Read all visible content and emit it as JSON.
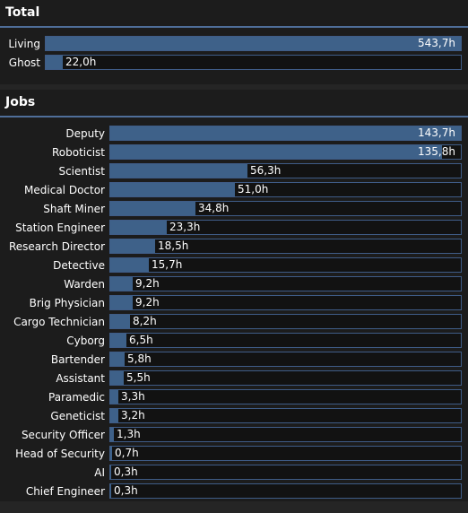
{
  "total": {
    "title": "Total",
    "max": 543.7,
    "items": [
      {
        "label": "Living",
        "value": 543.7,
        "text": "543,7h"
      },
      {
        "label": "Ghost",
        "value": 22.0,
        "text": "22,0h"
      }
    ]
  },
  "jobs": {
    "title": "Jobs",
    "max": 143.7,
    "items": [
      {
        "label": "Deputy",
        "value": 143.7,
        "text": "143,7h"
      },
      {
        "label": "Roboticist",
        "value": 135.8,
        "text": "135,8h"
      },
      {
        "label": "Scientist",
        "value": 56.3,
        "text": "56,3h"
      },
      {
        "label": "Medical Doctor",
        "value": 51.0,
        "text": "51,0h"
      },
      {
        "label": "Shaft Miner",
        "value": 34.8,
        "text": "34,8h"
      },
      {
        "label": "Station Engineer",
        "value": 23.3,
        "text": "23,3h"
      },
      {
        "label": "Research Director",
        "value": 18.5,
        "text": "18,5h"
      },
      {
        "label": "Detective",
        "value": 15.7,
        "text": "15,7h"
      },
      {
        "label": "Warden",
        "value": 9.2,
        "text": "9,2h"
      },
      {
        "label": "Brig Physician",
        "value": 9.2,
        "text": "9,2h"
      },
      {
        "label": "Cargo Technician",
        "value": 8.2,
        "text": "8,2h"
      },
      {
        "label": "Cyborg",
        "value": 6.5,
        "text": "6,5h"
      },
      {
        "label": "Bartender",
        "value": 5.8,
        "text": "5,8h"
      },
      {
        "label": "Assistant",
        "value": 5.5,
        "text": "5,5h"
      },
      {
        "label": "Paramedic",
        "value": 3.3,
        "text": "3,3h"
      },
      {
        "label": "Geneticist",
        "value": 3.2,
        "text": "3,2h"
      },
      {
        "label": "Security Officer",
        "value": 1.3,
        "text": "1,3h"
      },
      {
        "label": "Head of Security",
        "value": 0.7,
        "text": "0,7h"
      },
      {
        "label": "AI",
        "value": 0.3,
        "text": "0,3h"
      },
      {
        "label": "Chief Engineer",
        "value": 0.3,
        "text": "0,3h"
      }
    ]
  },
  "colors": {
    "accent": "#4f6e99",
    "bar_fill": "#3e6189",
    "bar_track": "#121212",
    "background": "#1c1c1c"
  },
  "icons": {
    "watermark": "faint-logo-watermark"
  }
}
